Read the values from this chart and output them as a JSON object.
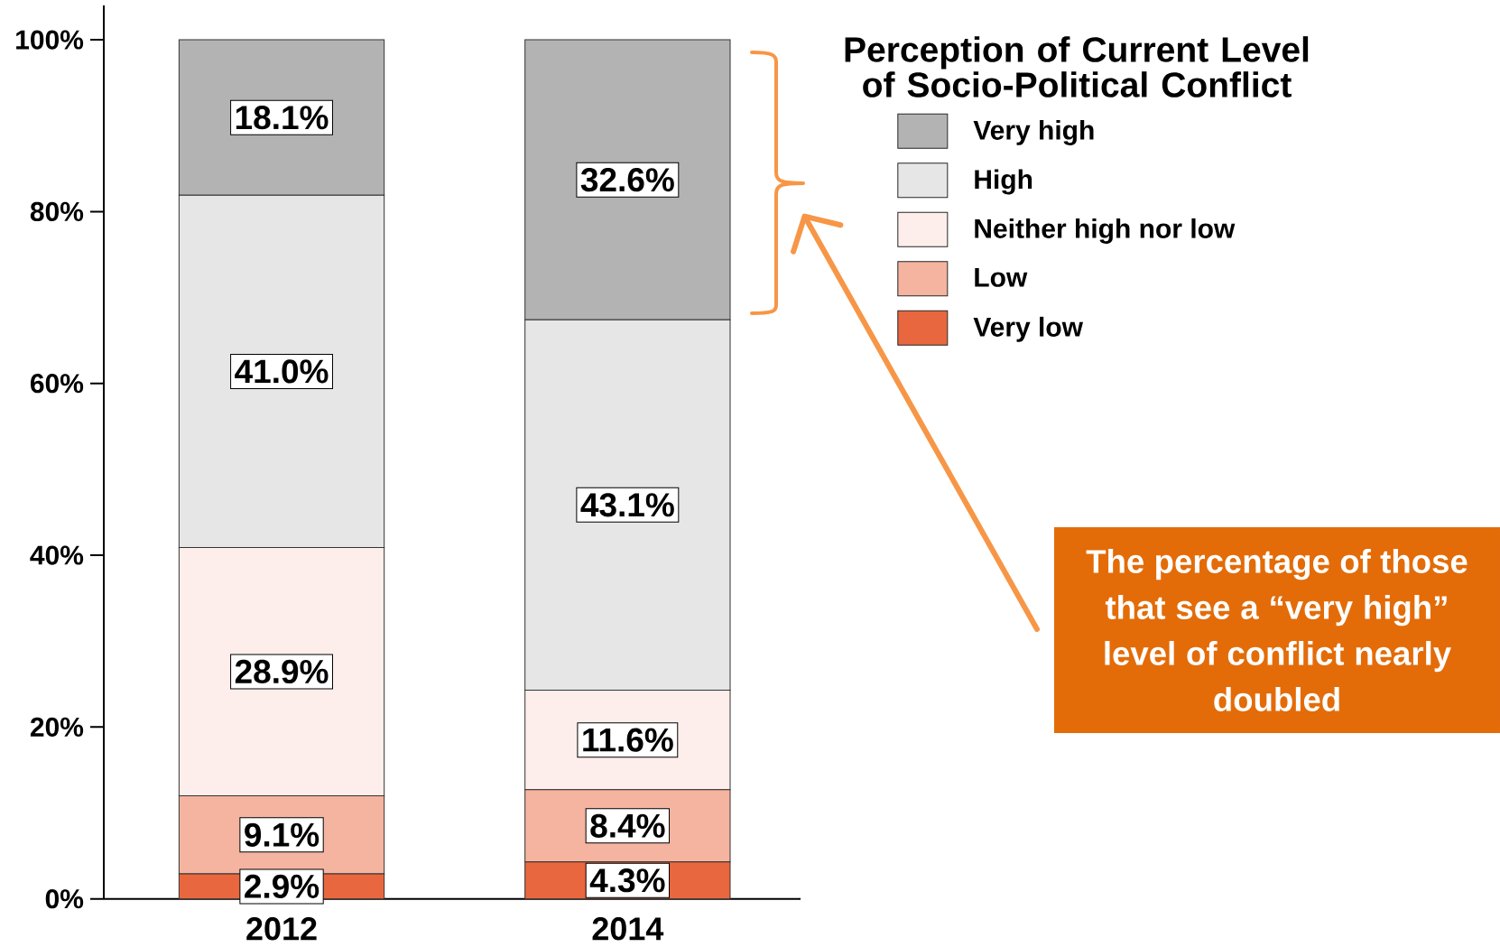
{
  "chart_data": {
    "type": "bar",
    "stacked": true,
    "categories": [
      "2012",
      "2014"
    ],
    "series": [
      {
        "name": "Very low",
        "color": "#e8673f",
        "values": [
          2.9,
          4.3
        ],
        "value_labels": [
          "2.9%",
          "4.3%"
        ]
      },
      {
        "name": "Low",
        "color": "#f4b4a0",
        "values": [
          9.1,
          8.4
        ],
        "value_labels": [
          "9.1%",
          "8.4%"
        ]
      },
      {
        "name": "Neither high nor low",
        "color": "#fdeeeb",
        "values": [
          28.9,
          11.6
        ],
        "value_labels": [
          "28.9%",
          "11.6%"
        ]
      },
      {
        "name": "High",
        "color": "#e6e6e6",
        "values": [
          41.0,
          43.1
        ],
        "value_labels": [
          "41.0%",
          "43.1%"
        ]
      },
      {
        "name": "Very high",
        "color": "#b3b3b3",
        "values": [
          18.1,
          32.6
        ],
        "value_labels": [
          "18.1%",
          "32.6%"
        ]
      }
    ],
    "ylim": [
      0,
      104
    ],
    "yticks": [
      {
        "value": 0,
        "label": "0%"
      },
      {
        "value": 20,
        "label": "20%"
      },
      {
        "value": 40,
        "label": "40%"
      },
      {
        "value": 60,
        "label": "60%"
      },
      {
        "value": 80,
        "label": "80%"
      },
      {
        "value": 100,
        "label": "100%"
      }
    ],
    "legend": "top right",
    "legend_title": "Perception of Current Level of Socio-Political Conflict",
    "annotations": [
      "The percentage of those that see a “very high” level of conflict nearly doubled"
    ]
  }
}
